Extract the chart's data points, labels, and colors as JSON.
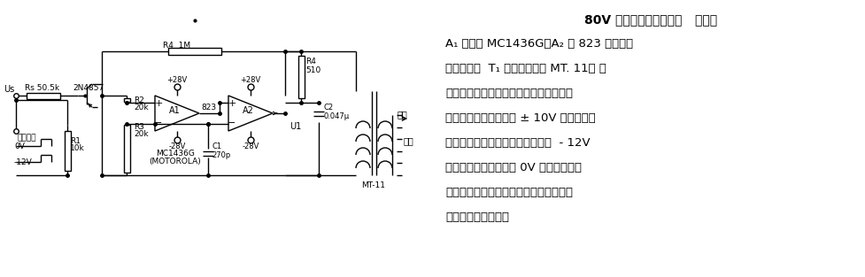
{
  "bg_color": "#ffffff",
  "text_color": "#000000",
  "fig_width": 9.78,
  "fig_height": 3.13,
  "dpi": 100,
  "title_line": "80V 有效值模拟开关电路   电路中",
  "desc_lines": [
    "A₁ 为运放 MC1436G，A₂ 为 823 型功率运",
    "算放大器，  T₁ 为小型变压器 MT. 11。 反",
    "馈电路稳定了输出信号，减小了电路参数",
    "变化对输出的影响。在 ± 10V 之间变化的",
    "交流输入信号，可由场效应管栅极  - 12V",
    "电压关断，栅极电压为 0V 时，开关接通",
    "并经放大，变压器升压输出。该电路可用",
    "于数字同步变换器。"
  ],
  "lw": 1.0,
  "lc": "#000000"
}
